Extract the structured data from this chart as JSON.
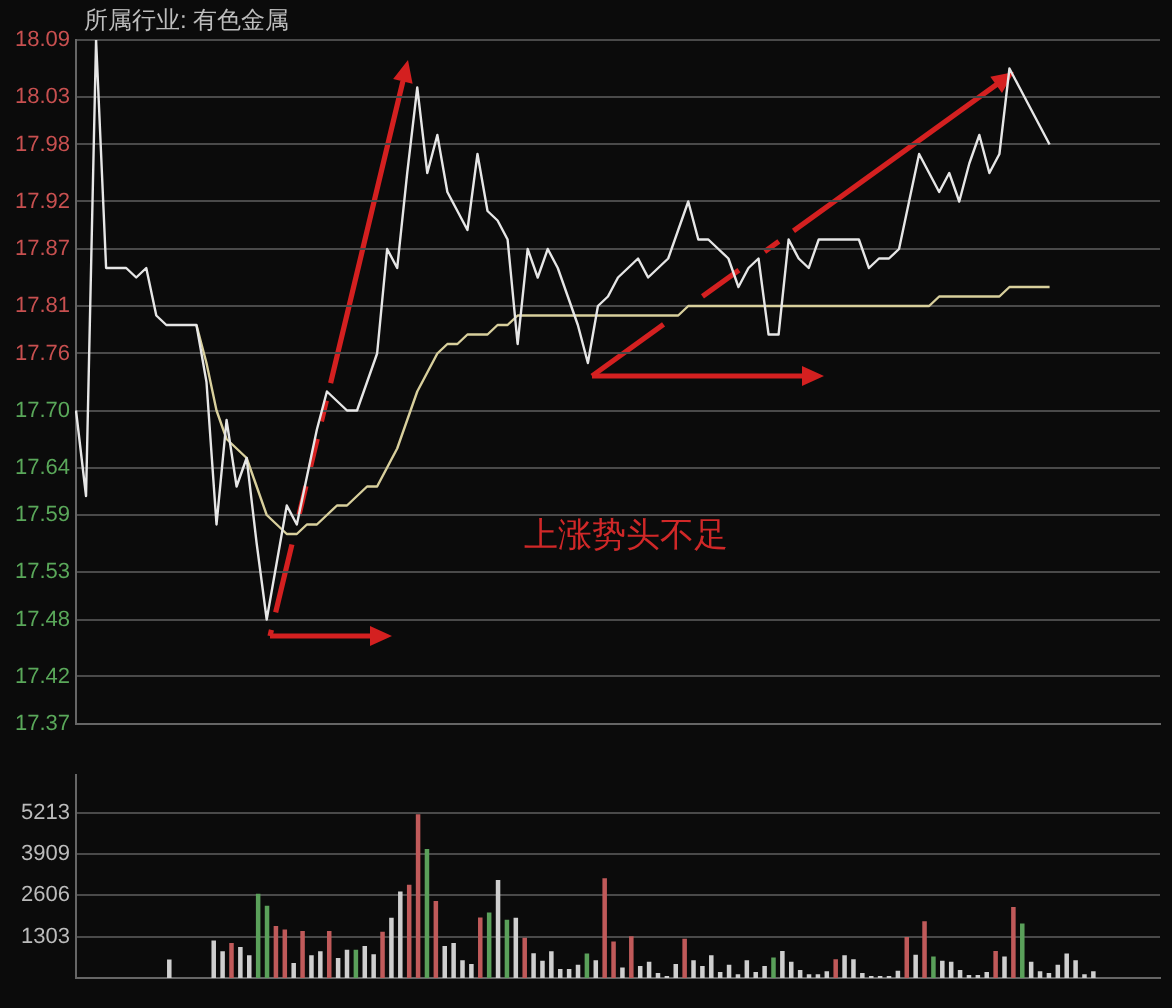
{
  "chart_data": [
    {
      "type": "line",
      "title": "所属行业: 有色金属",
      "annotations": [
        "上涨势头不足"
      ],
      "marker": "none",
      "grid": "y",
      "tick_labels": "y",
      "categories": [
        null,
        null,
        null,
        null,
        null,
        null,
        null,
        null,
        null,
        null,
        null,
        null,
        null,
        null,
        null,
        null,
        null,
        null,
        null,
        null,
        null,
        null,
        null,
        null,
        null,
        null,
        null,
        null,
        null,
        null,
        null,
        null,
        null,
        null,
        null,
        null,
        null,
        null,
        null,
        null,
        null,
        null,
        null,
        null,
        null,
        null,
        null,
        null,
        null,
        null,
        null,
        null,
        null,
        null,
        null,
        null,
        null,
        null,
        null,
        null,
        null,
        null,
        null,
        null,
        null,
        null,
        null,
        null,
        null,
        null,
        null,
        null,
        null,
        null,
        null,
        null,
        null,
        null,
        null,
        null,
        null,
        null,
        null,
        null,
        null,
        null,
        null,
        null,
        null,
        null,
        null,
        null,
        null,
        null,
        null,
        null,
        null,
        null,
        null,
        null,
        null,
        null,
        null,
        null,
        null,
        null,
        null,
        null,
        null
      ],
      "ylim": [
        17.37,
        18.09
      ],
      "yticks": [
        17.37,
        17.42,
        17.48,
        17.53,
        17.59,
        17.64,
        {
          "value": 17.7,
          "label": "17.70"
        },
        17.76,
        17.81,
        17.87,
        17.92,
        17.98,
        18.03,
        18.09
      ],
      "series": [
        {
          "color": "#e6e6e6",
          "values": [
            17.7,
            17.61,
            18.09,
            17.85,
            17.85,
            17.85,
            17.84,
            17.85,
            17.8,
            17.79,
            17.79,
            17.79,
            17.79,
            17.73,
            17.58,
            17.69,
            17.62,
            17.65,
            17.56,
            17.48,
            17.54,
            17.6,
            17.58,
            17.63,
            17.68,
            17.72,
            17.71,
            17.7,
            17.7,
            17.73,
            17.76,
            17.87,
            17.85,
            17.95,
            18.04,
            17.95,
            17.99,
            17.93,
            17.91,
            17.89,
            17.97,
            17.91,
            17.9,
            17.88,
            17.77,
            17.87,
            17.84,
            17.87,
            17.85,
            17.82,
            17.79,
            17.75,
            17.81,
            17.82,
            17.84,
            17.85,
            17.86,
            17.84,
            17.85,
            17.86,
            17.89,
            17.92,
            17.88,
            17.88,
            17.87,
            17.86,
            17.83,
            17.85,
            17.86,
            17.78,
            17.78,
            17.88,
            17.86,
            17.85,
            17.88,
            17.88,
            17.88,
            17.88,
            17.88,
            17.85,
            17.86,
            17.86,
            17.87,
            17.92,
            17.97,
            17.95,
            17.93,
            17.95,
            17.92,
            17.96,
            17.99,
            17.95,
            17.97,
            18.06,
            18.04,
            18.02,
            18.0,
            17.98,
            null,
            null,
            null,
            null,
            null,
            null,
            null,
            null,
            null,
            null,
            null
          ]
        },
        {
          "color": "#d8cf9c",
          "values": [
            null,
            null,
            null,
            null,
            null,
            null,
            null,
            null,
            null,
            null,
            null,
            null,
            17.79,
            17.75,
            17.7,
            17.67,
            17.66,
            17.65,
            17.62,
            17.59,
            17.58,
            17.57,
            17.57,
            17.58,
            17.58,
            17.59,
            17.6,
            17.6,
            17.61,
            17.62,
            17.62,
            17.64,
            17.66,
            17.69,
            17.72,
            17.74,
            17.76,
            17.77,
            17.77,
            17.78,
            17.78,
            17.78,
            17.79,
            17.79,
            17.8,
            17.8,
            17.8,
            17.8,
            17.8,
            17.8,
            17.8,
            17.8,
            17.8,
            17.8,
            17.8,
            17.8,
            17.8,
            17.8,
            17.8,
            17.8,
            17.8,
            17.81,
            17.81,
            17.81,
            17.81,
            17.81,
            17.81,
            17.81,
            17.81,
            17.81,
            17.81,
            17.81,
            17.81,
            17.81,
            17.81,
            17.81,
            17.81,
            17.81,
            17.81,
            17.81,
            17.81,
            17.81,
            17.81,
            17.81,
            17.81,
            17.81,
            17.82,
            17.82,
            17.82,
            17.82,
            17.82,
            17.82,
            17.82,
            17.83,
            17.83,
            17.83,
            17.83,
            17.83,
            null,
            null,
            null,
            null,
            null,
            null,
            null,
            null,
            null,
            null,
            null
          ]
        }
      ]
    },
    {
      "type": "bar",
      "grid": "y",
      "tick_labels": "y",
      "ylim": [
        0,
        6400
      ],
      "yticks": [
        1303,
        2606,
        3909,
        5213
      ],
      "categories": [
        null,
        null,
        null,
        null,
        null,
        null,
        null,
        null,
        null,
        null,
        null,
        null,
        null,
        null,
        null,
        null,
        null,
        null,
        null,
        null,
        null,
        null,
        null,
        null,
        null,
        null,
        null,
        null,
        null,
        null,
        null,
        null,
        null,
        null,
        null,
        null,
        null,
        null,
        null,
        null,
        null,
        null,
        null,
        null,
        null,
        null,
        null,
        null,
        null,
        null,
        null,
        null,
        null,
        null,
        null,
        null,
        null,
        null,
        null,
        null,
        null,
        null,
        null,
        null,
        null,
        null,
        null,
        null,
        null,
        null,
        null,
        null,
        null,
        null,
        null,
        null,
        null,
        null,
        null,
        null,
        null,
        null,
        null,
        null,
        null,
        null,
        null,
        null,
        null,
        null,
        null,
        null,
        null,
        null,
        null,
        null,
        null,
        null,
        null,
        null,
        null,
        null,
        null,
        null,
        null,
        null,
        null,
        null,
        null,
        null,
        null,
        null,
        null,
        null,
        null,
        null,
        null,
        null,
        null,
        null,
        null,
        null
      ],
      "values": [
        null,
        null,
        null,
        null,
        null,
        null,
        null,
        null,
        null,
        null,
        560,
        null,
        null,
        null,
        null,
        1160,
        820,
        1080,
        960,
        700,
        2640,
        2260,
        1620,
        1510,
        450,
        1460,
        700,
        820,
        1460,
        610,
        870,
        870,
        990,
        730,
        1440,
        1880,
        2710,
        2920,
        5150,
        4050,
        2410,
        990,
        1080,
        540,
        420,
        1890,
        2050,
        3070,
        1820,
        1880,
        1250,
        760,
        520,
        820,
        260,
        260,
        400,
        750,
        540,
        3130,
        1130,
        310,
        1300,
        360,
        490,
        140,
        40,
        420,
        1220,
        540,
        360,
        700,
        170,
        400,
        100,
        540,
        170,
        360,
        630,
        830,
        490,
        230,
        100,
        100,
        190,
        570,
        700,
        570,
        140,
        40,
        40,
        40,
        210,
        1270,
        710,
        1770,
        660,
        520,
        490,
        230,
        70,
        70,
        170,
        830,
        660,
        2220,
        1700,
        490,
        190,
        140,
        400,
        750,
        540,
        100,
        190,
        null,
        null,
        null,
        null,
        null,
        null,
        null
      ],
      "colors": [
        "#cfcfcf",
        "#cfcfcf",
        "#cfcfcf",
        "#cfcfcf",
        "#cfcfcf",
        "#cfcfcf",
        "#cfcfcf",
        "#cfcfcf",
        "#cfcfcf",
        "#cfcfcf",
        "#cfcfcf",
        "#cfcfcf",
        "#cfcfcf",
        "#cfcfcf",
        "#cfcfcf",
        "#cfcfcf",
        "#cfcfcf",
        "#c05a5a",
        "#cfcfcf",
        "#cfcfcf",
        "#5aa05a",
        "#5aa05a",
        "#c05a5a",
        "#c05a5a",
        "#cfcfcf",
        "#c05a5a",
        "#cfcfcf",
        "#cfcfcf",
        "#c05a5a",
        "#cfcfcf",
        "#cfcfcf",
        "#5aa05a",
        "#cfcfcf",
        "#cfcfcf",
        "#c05a5a",
        "#cfcfcf",
        "#cfcfcf",
        "#c05a5a",
        "#c05a5a",
        "#5aa05a",
        "#c05a5a",
        "#cfcfcf",
        "#cfcfcf",
        "#cfcfcf",
        "#cfcfcf",
        "#c05a5a",
        "#5aa05a",
        "#cfcfcf",
        "#5aa05a",
        "#cfcfcf",
        "#c05a5a",
        "#cfcfcf",
        "#cfcfcf",
        "#cfcfcf",
        "#cfcfcf",
        "#cfcfcf",
        "#cfcfcf",
        "#5aa05a",
        "#cfcfcf",
        "#c05a5a",
        "#c05a5a",
        "#cfcfcf",
        "#c05a5a",
        "#cfcfcf",
        "#cfcfcf",
        "#cfcfcf",
        "#cfcfcf",
        "#cfcfcf",
        "#c05a5a",
        "#cfcfcf",
        "#cfcfcf",
        "#cfcfcf",
        "#cfcfcf",
        "#cfcfcf",
        "#cfcfcf",
        "#cfcfcf",
        "#cfcfcf",
        "#cfcfcf",
        "#5aa05a",
        "#cfcfcf",
        "#cfcfcf",
        "#cfcfcf",
        "#cfcfcf",
        "#cfcfcf",
        "#cfcfcf",
        "#c05a5a",
        "#cfcfcf",
        "#cfcfcf",
        "#cfcfcf",
        "#cfcfcf",
        "#cfcfcf",
        "#cfcfcf",
        "#cfcfcf",
        "#c05a5a",
        "#cfcfcf",
        "#c05a5a",
        "#5aa05a",
        "#cfcfcf",
        "#cfcfcf",
        "#cfcfcf",
        "#cfcfcf",
        "#cfcfcf",
        "#cfcfcf",
        "#c05a5a",
        "#cfcfcf",
        "#c05a5a",
        "#5aa05a",
        "#cfcfcf",
        "#cfcfcf",
        "#cfcfcf",
        "#cfcfcf",
        "#cfcfcf",
        "#cfcfcf",
        "#cfcfcf",
        "#cfcfcf",
        "#cfcfcf",
        "#cfcfcf",
        "#cfcfcf",
        "#cfcfcf",
        "#cfcfcf",
        "#cfcfcf",
        "#cfcfcf"
      ]
    }
  ]
}
